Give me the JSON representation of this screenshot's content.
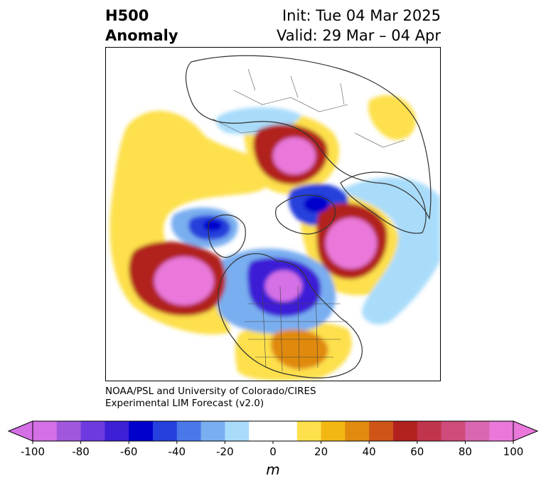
{
  "header": {
    "title_line1": "H500",
    "title_line2": "Anomaly",
    "init": "Init: Tue 04 Mar 2025",
    "valid": "Valid: 29 Mar – 04 Apr"
  },
  "credit": {
    "line1": "NOAA/PSL and University of Colorado/CIRES",
    "line2": "Experimental LIM Forecast (v2.0)"
  },
  "colorbar": {
    "unit": "m",
    "tick_labels": [
      "-100",
      "-80",
      "-60",
      "-40",
      "-20",
      "0",
      "20",
      "40",
      "60",
      "80",
      "100"
    ],
    "levels": [
      -100,
      -90,
      -80,
      -70,
      -60,
      -50,
      -40,
      -30,
      -20,
      -10,
      10,
      20,
      30,
      40,
      50,
      60,
      70,
      80,
      90,
      100
    ],
    "colors": [
      "#d56fe6",
      "#a057de",
      "#6e3ae0",
      "#3d1fd6",
      "#0000cc",
      "#2540dc",
      "#4b78e8",
      "#79aef0",
      "#a9dcfb",
      "#ffffff",
      "#fde04c",
      "#f2b713",
      "#e08a10",
      "#ce5517",
      "#b1221f",
      "#c1354c",
      "#cf4b7c",
      "#d966b0",
      "#e978da"
    ],
    "under_color": "#d56fe6",
    "over_color": "#e978da"
  },
  "map": {
    "projection": "polar stereographic",
    "features": [
      "H500 anomaly shaded contours",
      "coastlines",
      "country borders",
      "US state borders",
      "Canadian province borders"
    ],
    "anomaly_centers": [
      {
        "region": "North Pacific / Alaska Gulf",
        "value_m": 100
      },
      {
        "region": "North Atlantic / Northern Europe",
        "value_m": 100
      },
      {
        "region": "Eastern Siberia / Arctic",
        "value_m": 100
      },
      {
        "region": "Eastern North America / Great Lakes",
        "value_m": -90
      },
      {
        "region": "Greenland Sea / Arctic Ocean",
        "value_m": -60
      },
      {
        "region": "Kamchatka / Bering",
        "value_m": -60
      },
      {
        "region": "Southeastern US / Gulf",
        "value_m": 50
      }
    ]
  }
}
